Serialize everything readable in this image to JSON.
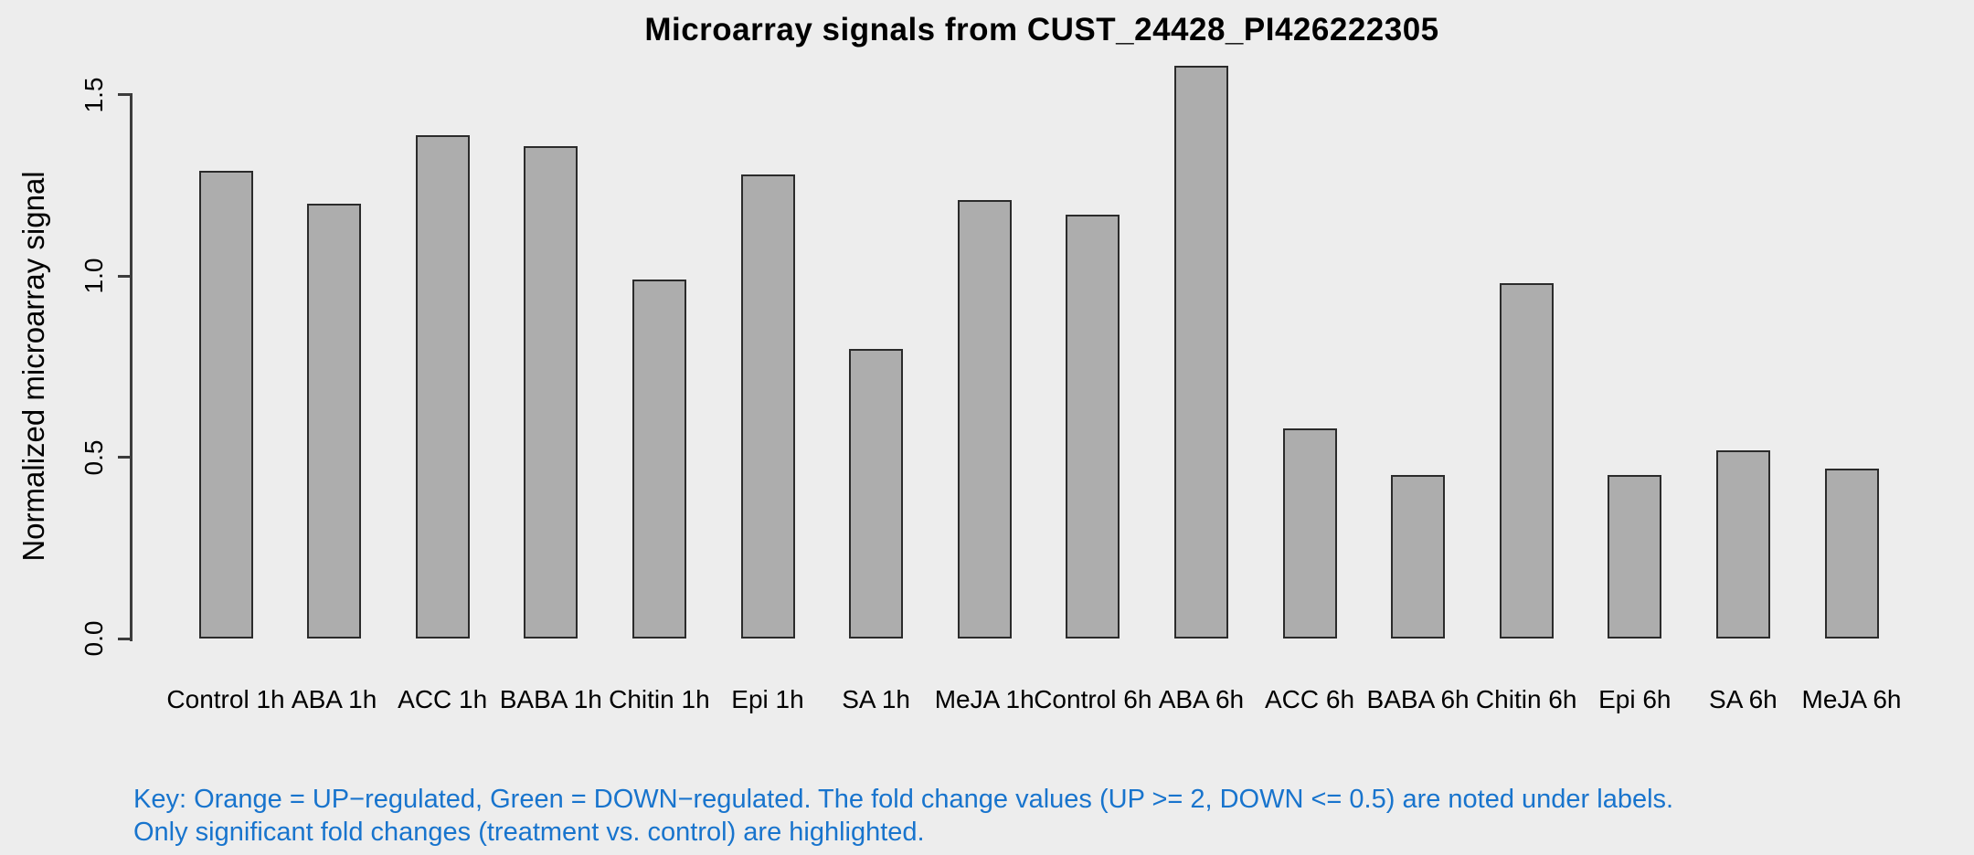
{
  "title": "Microarray signals from CUST_24428_PI426222305",
  "y_axis": {
    "label": "Normalized microarray signal",
    "tick_labels": [
      "0.0",
      "0.5",
      "1.0",
      "1.5"
    ]
  },
  "footer": {
    "line1": "Key: Orange = UP−regulated, Green = DOWN−regulated. The fold change values (UP >= 2, DOWN <= 0.5) are noted under labels.",
    "line2": "Only significant fold changes (treatment vs. control) are highlighted."
  },
  "colors": {
    "background": "#EDEDED",
    "bar_fill": "#ADADAD",
    "bar_border": "#2B2B2B",
    "axis": "#3C3C3C",
    "text": "#000000",
    "footer_text": "#1874CD"
  },
  "chart_data": {
    "type": "bar",
    "title": "Microarray signals from CUST_24428_PI426222305",
    "categories": [
      "Control 1h",
      "ABA 1h",
      "ACC 1h",
      "BABA 1h",
      "Chitin 1h",
      "Epi 1h",
      "SA 1h",
      "MeJA 1h",
      "Control 6h",
      "ABA 6h",
      "ACC 6h",
      "BABA 6h",
      "Chitin 6h",
      "Epi 6h",
      "SA 6h",
      "MeJA 6h"
    ],
    "values": [
      1.29,
      1.2,
      1.39,
      1.36,
      0.99,
      1.28,
      0.8,
      1.21,
      1.17,
      1.58,
      0.58,
      0.45,
      0.98,
      0.45,
      0.52,
      0.47
    ],
    "xlabel": "",
    "ylabel": "Normalized microarray signal",
    "ylim": [
      0,
      1.6
    ],
    "yticks": [
      0,
      0.5,
      1.0,
      1.5
    ],
    "grid": false,
    "legend": "none",
    "bar_color": "#ADADAD"
  }
}
